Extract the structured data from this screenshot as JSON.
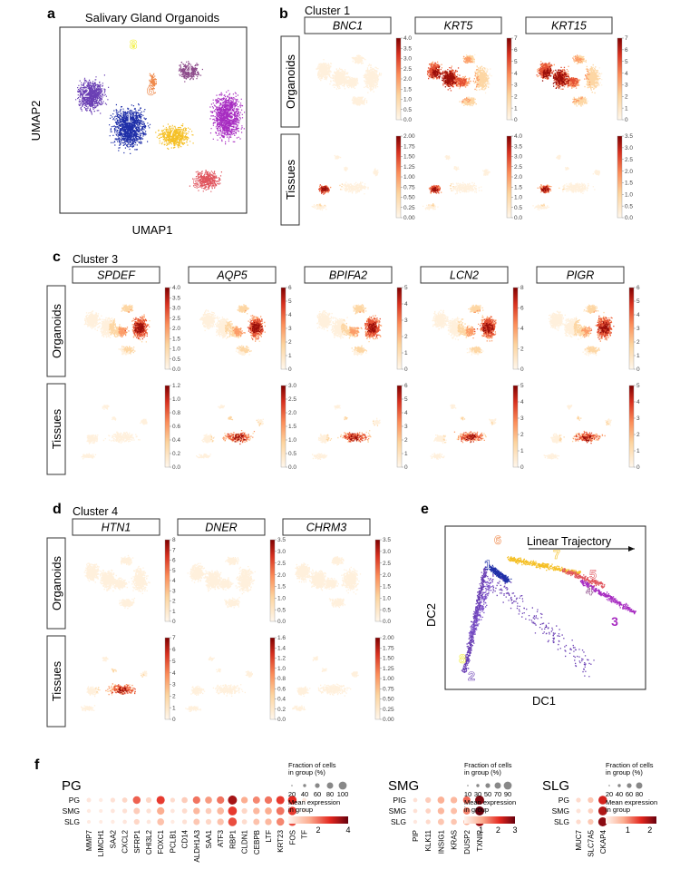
{
  "panel_a": {
    "letter": "a",
    "title": "Salivary Gland Organoids",
    "xlabel": "UMAP1",
    "ylabel": "UMAP2",
    "clusters": [
      {
        "id": "1",
        "color": "#1f2fa8"
      },
      {
        "id": "2",
        "color": "#6a3fb4"
      },
      {
        "id": "3",
        "color": "#a72cc1"
      },
      {
        "id": "4",
        "color": "#8c4a8a"
      },
      {
        "id": "5",
        "color": "#e0555e"
      },
      {
        "id": "6",
        "color": "#ef8a4c"
      },
      {
        "id": "7",
        "color": "#f5c026"
      },
      {
        "id": "8",
        "color": "#f2ef3a"
      }
    ]
  },
  "panel_b": {
    "letter": "b",
    "cluster_label": "Cluster 1",
    "genes": [
      "BNC1",
      "KRT5",
      "KRT15"
    ],
    "rows": [
      "Organoids",
      "Tissues"
    ],
    "organoid_ticks": [
      [
        "0.0",
        "0.5",
        "1.0",
        "1.5",
        "2.0",
        "2.5",
        "3.0",
        "3.5",
        "4.0"
      ],
      [
        "0",
        "1",
        "2",
        "3",
        "4",
        "5",
        "6",
        "7"
      ],
      [
        "0",
        "1",
        "2",
        "3",
        "4",
        "5",
        "6",
        "7"
      ]
    ],
    "tissue_ticks": [
      [
        "0.00",
        "0.25",
        "0.50",
        "0.75",
        "1.00",
        "1.25",
        "1.50",
        "1.75",
        "2.00"
      ],
      [
        "0.0",
        "0.5",
        "1.0",
        "1.5",
        "2.0",
        "2.5",
        "3.0",
        "3.5",
        "4.0"
      ],
      [
        "0.0",
        "0.5",
        "1.0",
        "1.5",
        "2.0",
        "2.5",
        "3.0",
        "3.5"
      ]
    ]
  },
  "panel_c": {
    "letter": "c",
    "cluster_label": "Cluster 3",
    "genes": [
      "SPDEF",
      "AQP5",
      "BPIFA2",
      "LCN2",
      "PIGR"
    ],
    "rows": [
      "Organoids",
      "Tissues"
    ],
    "organoid_ticks": [
      [
        "0.0",
        "0.5",
        "1.0",
        "1.5",
        "2.0",
        "2.5",
        "3.0",
        "3.5",
        "4.0"
      ],
      [
        "0",
        "1",
        "2",
        "3",
        "4",
        "5",
        "6"
      ],
      [
        "0",
        "1",
        "2",
        "3",
        "4",
        "5"
      ],
      [
        "0",
        "2",
        "4",
        "6",
        "8"
      ],
      [
        "0",
        "1",
        "2",
        "3",
        "4",
        "5",
        "6"
      ]
    ],
    "tissue_ticks": [
      [
        "0.0",
        "0.2",
        "0.4",
        "0.6",
        "0.8",
        "1.0",
        "1.2"
      ],
      [
        "0.0",
        "0.5",
        "1.0",
        "1.5",
        "2.0",
        "2.5",
        "3.0"
      ],
      [
        "0",
        "1",
        "2",
        "3",
        "4",
        "5",
        "6"
      ],
      [
        "0",
        "1",
        "2",
        "3",
        "4",
        "5"
      ],
      [
        "0",
        "1",
        "2",
        "3",
        "4",
        "5"
      ]
    ]
  },
  "panel_d": {
    "letter": "d",
    "cluster_label": "Cluster 4",
    "genes": [
      "HTN1",
      "DNER",
      "CHRM3"
    ],
    "rows": [
      "Organoids",
      "Tissues"
    ],
    "organoid_ticks": [
      [
        "0",
        "1",
        "2",
        "3",
        "4",
        "5",
        "6",
        "7",
        "8"
      ],
      [
        "0.0",
        "0.5",
        "1.0",
        "1.5",
        "2.0",
        "2.5",
        "3.0",
        "3.5"
      ],
      [
        "0.0",
        "0.5",
        "1.0",
        "1.5",
        "2.0",
        "2.5",
        "3.0",
        "3.5"
      ]
    ],
    "tissue_ticks": [
      [
        "0",
        "1",
        "2",
        "3",
        "4",
        "5",
        "6",
        "7"
      ],
      [
        "0.0",
        "0.2",
        "0.4",
        "0.6",
        "0.8",
        "1.0",
        "1.2",
        "1.4",
        "1.6"
      ],
      [
        "0.00",
        "0.25",
        "0.50",
        "0.75",
        "1.00",
        "1.25",
        "1.50",
        "1.75",
        "2.00"
      ]
    ]
  },
  "panel_e": {
    "letter": "e",
    "title": "Linear Trajectory",
    "xlabel": "DC1",
    "ylabel": "DC2",
    "labels": [
      {
        "id": "6",
        "color": "#ef8a4c"
      },
      {
        "id": "1",
        "color": "#1f2fa8"
      },
      {
        "id": "7",
        "color": "#f5c026"
      },
      {
        "id": "5",
        "color": "#e0555e"
      },
      {
        "id": "4",
        "color": "#8c4a8a"
      },
      {
        "id": "3",
        "color": "#a72cc1"
      },
      {
        "id": "8",
        "color": "#f2ef3a"
      },
      {
        "id": "2",
        "color": "#6a3fb4"
      }
    ]
  },
  "panel_f": {
    "letter": "f",
    "legend_fraction_title": "Fraction of cells in group (%)",
    "legend_mean_title": "Mean expression in group",
    "groups": [
      {
        "name": "PG",
        "rows": [
          "PG",
          "SMG",
          "SLG"
        ],
        "genes": [
          "MMP7",
          "LIMCH1",
          "SAA2",
          "CXCL2",
          "SFRP1",
          "CHI3L2",
          "FOXC1",
          "PCLB1",
          "CD14",
          "ALDH1A3",
          "SAA1",
          "ATF3",
          "RBP1",
          "CLDN1",
          "CEBPB",
          "LTF",
          "KRT23",
          "FOS",
          "TF"
        ],
        "size_ticks": [
          "20",
          "40",
          "60",
          "80",
          "100"
        ],
        "color_ticks": [
          "2",
          "4"
        ],
        "expression": [
          [
            0.3,
            0.2,
            0.4,
            0.6,
            2.2,
            0.6,
            2.6,
            0.5,
            0.8,
            2.0,
            1.6,
            2.0,
            3.4,
            1.4,
            1.8,
            2.0,
            2.6,
            2.8,
            0.3
          ],
          [
            0.2,
            0.2,
            0.3,
            0.4,
            0.8,
            0.4,
            1.4,
            0.3,
            0.5,
            1.2,
            0.8,
            1.2,
            2.6,
            0.6,
            1.2,
            1.4,
            2.0,
            2.6,
            0.2
          ],
          [
            0.2,
            0.2,
            0.2,
            0.3,
            0.6,
            0.3,
            1.0,
            0.2,
            0.4,
            0.9,
            0.6,
            1.0,
            2.4,
            0.5,
            1.0,
            1.2,
            1.8,
            2.4,
            0.2
          ]
        ],
        "fraction": [
          [
            12,
            8,
            15,
            20,
            60,
            25,
            70,
            15,
            30,
            55,
            45,
            55,
            90,
            40,
            50,
            55,
            70,
            80,
            10
          ],
          [
            8,
            6,
            10,
            15,
            35,
            15,
            55,
            10,
            20,
            40,
            30,
            45,
            85,
            25,
            40,
            45,
            65,
            75,
            8
          ],
          [
            6,
            5,
            8,
            10,
            25,
            10,
            45,
            8,
            15,
            35,
            25,
            40,
            80,
            20,
            35,
            40,
            60,
            70,
            6
          ]
        ]
      },
      {
        "name": "SMG",
        "rows": [
          "PIG",
          "SMG",
          "SLG"
        ],
        "genes": [
          "PIP",
          "KLK11",
          "INSIG1",
          "KRAS",
          "DUSP2",
          "TXNIP"
        ],
        "size_ticks": [
          "10",
          "30",
          "50",
          "70",
          "90"
        ],
        "color_ticks": [
          "1",
          "2",
          "3"
        ],
        "expression": [
          [
            0.3,
            0.6,
            1.0,
            0.9,
            1.6,
            2.8
          ],
          [
            0.3,
            0.5,
            0.9,
            0.8,
            1.4,
            3.0
          ],
          [
            0.2,
            0.4,
            0.7,
            0.7,
            1.0,
            2.6
          ]
        ],
        "fraction": [
          [
            10,
            25,
            45,
            40,
            55,
            90
          ],
          [
            10,
            20,
            40,
            35,
            50,
            90
          ],
          [
            8,
            15,
            35,
            30,
            40,
            85
          ]
        ]
      },
      {
        "name": "SLG",
        "rows": [
          "PG",
          "SMG",
          "SLG"
        ],
        "genes": [
          "MUC7",
          "SLC7A5",
          "CKAP4"
        ],
        "size_ticks": [
          "20",
          "40",
          "60",
          "80"
        ],
        "color_ticks": [
          "1",
          "2"
        ],
        "expression": [
          [
            0.3,
            0.5,
            1.7
          ],
          [
            0.2,
            0.4,
            1.9
          ],
          [
            0.3,
            0.5,
            2.1
          ]
        ],
        "fraction": [
          [
            15,
            25,
            80
          ],
          [
            12,
            20,
            85
          ],
          [
            15,
            25,
            90
          ]
        ]
      }
    ]
  }
}
